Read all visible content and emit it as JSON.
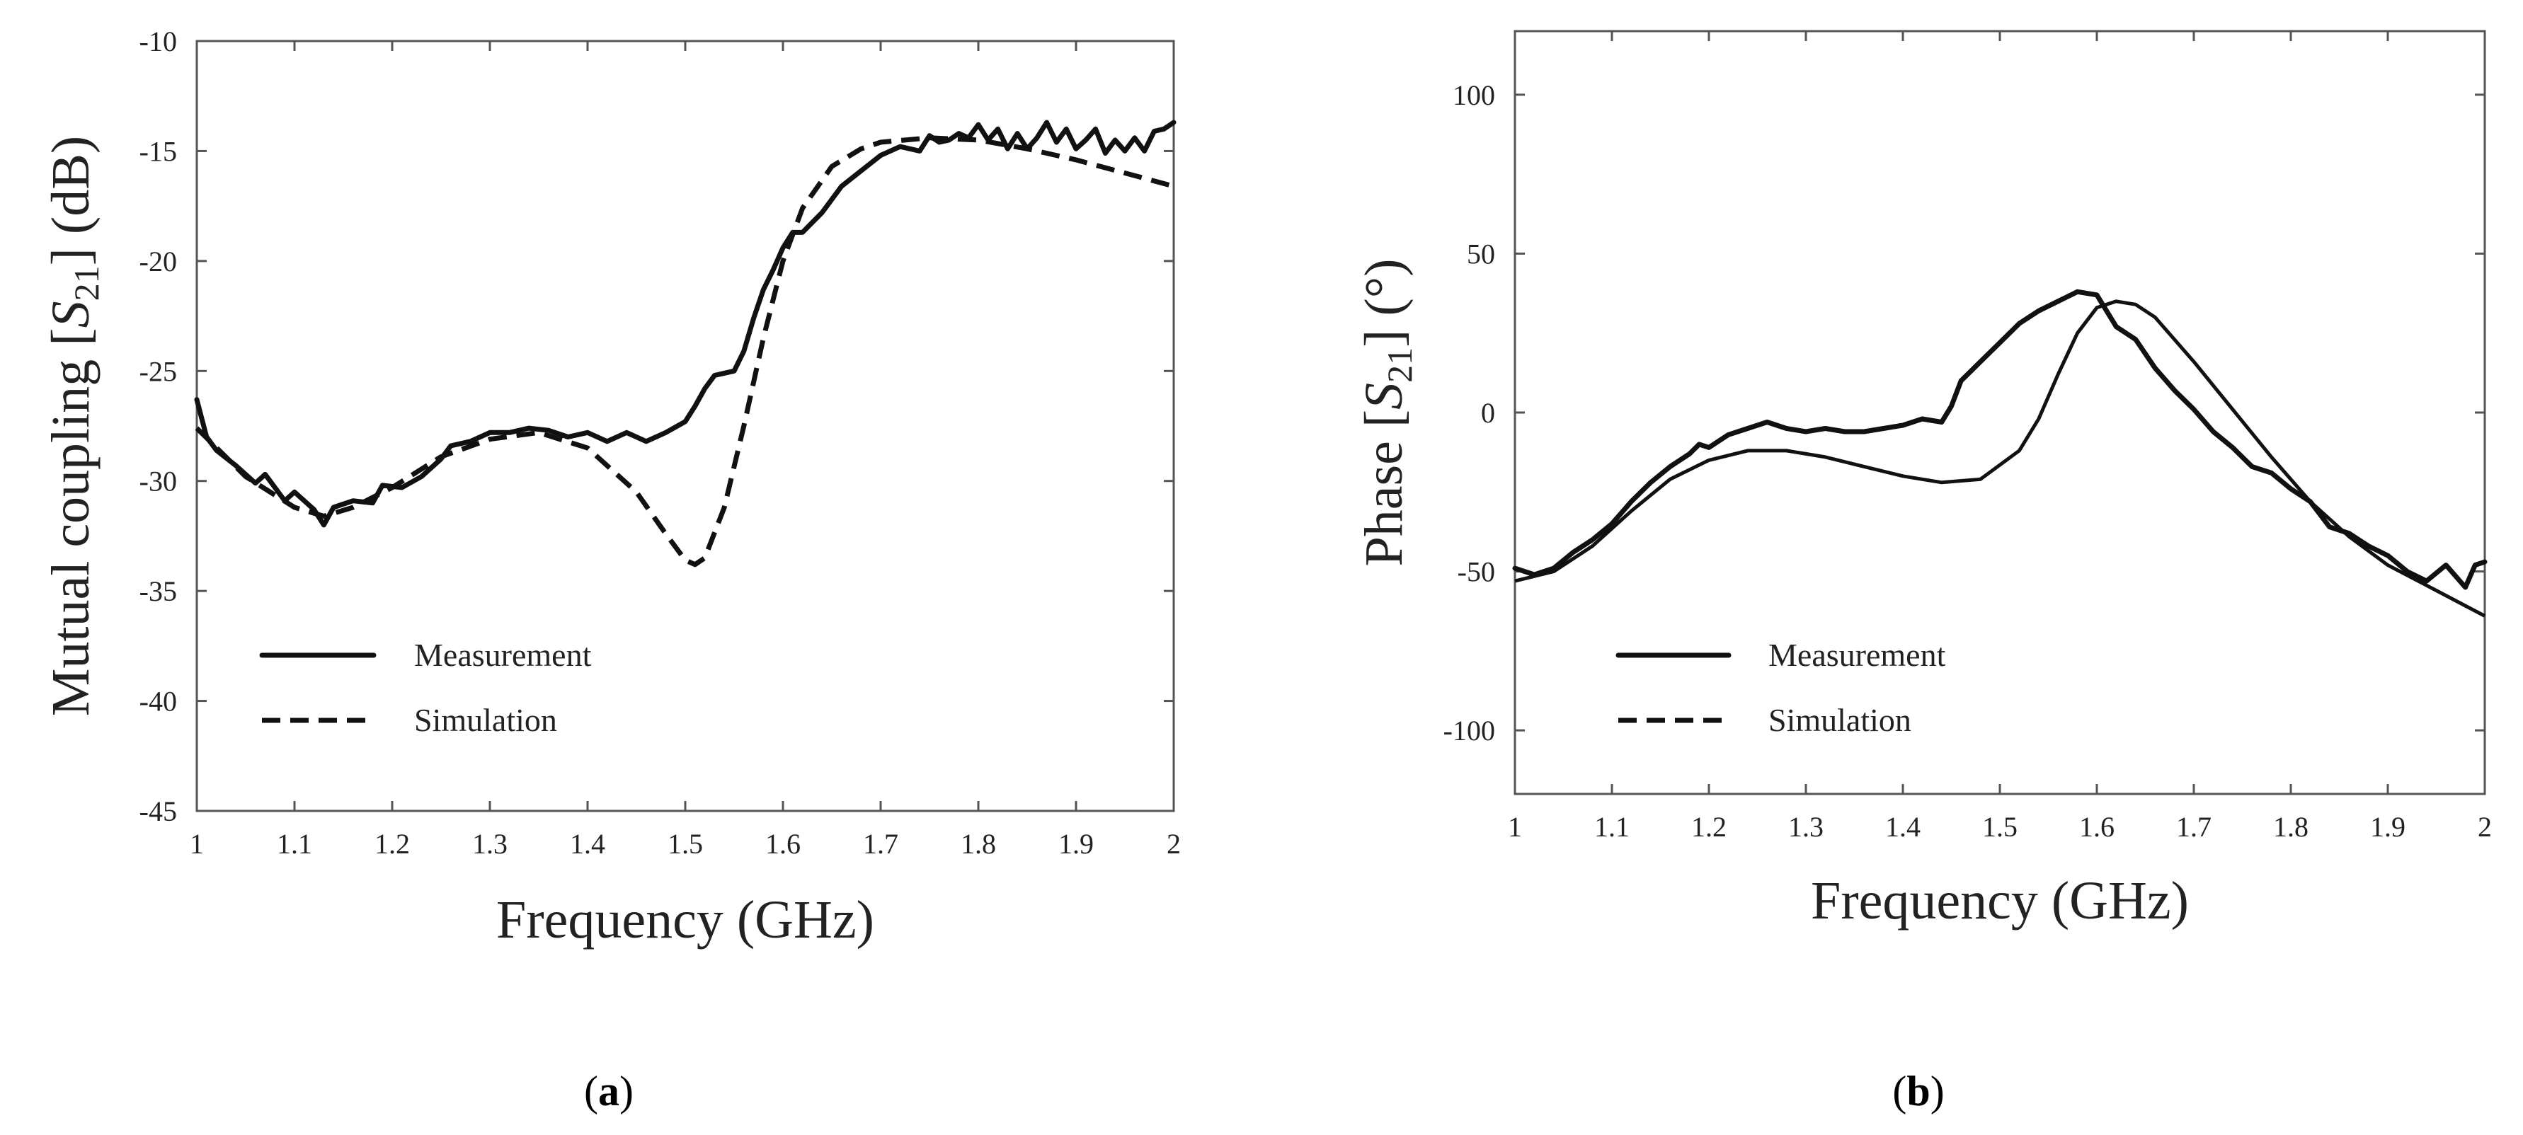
{
  "chart_data": [
    {
      "id": "a",
      "type": "line",
      "panel_prefix": "(",
      "panel_letter": "a",
      "panel_suffix": ")",
      "xlabel": "Frequency (GHz)",
      "ylabel_prefix": "Mutual coupling [",
      "ylabel_symbol": "S",
      "ylabel_subscript": "21",
      "ylabel_suffix": "] (dB)",
      "xlim": [
        1,
        2
      ],
      "ylim": [
        -45,
        -10
      ],
      "xticks": [
        1,
        1.1,
        1.2,
        1.3,
        1.4,
        1.5,
        1.6,
        1.7,
        1.8,
        1.9,
        2
      ],
      "xtick_labels": [
        "1",
        "1.1",
        "1.2",
        "1.3",
        "1.4",
        "1.5",
        "1.6",
        "1.7",
        "1.8",
        "1.9",
        "2"
      ],
      "yticks": [
        -45,
        -40,
        -35,
        -30,
        -25,
        -20,
        -15,
        -10
      ],
      "ytick_labels": [
        "-45",
        "-40",
        "-35",
        "-30",
        "-25",
        "-20",
        "-15",
        "-10"
      ],
      "legend": [
        {
          "label": "Measurement",
          "style": "solid"
        },
        {
          "label": "Simulation",
          "style": "dashed"
        }
      ],
      "series": [
        {
          "name": "Measurement",
          "style": "solid",
          "x": [
            1.0,
            1.01,
            1.02,
            1.04,
            1.06,
            1.07,
            1.09,
            1.1,
            1.12,
            1.13,
            1.14,
            1.16,
            1.18,
            1.19,
            1.21,
            1.23,
            1.25,
            1.26,
            1.28,
            1.3,
            1.32,
            1.34,
            1.36,
            1.38,
            1.4,
            1.42,
            1.44,
            1.46,
            1.48,
            1.5,
            1.51,
            1.52,
            1.53,
            1.55,
            1.56,
            1.57,
            1.58,
            1.59,
            1.6,
            1.61,
            1.62,
            1.64,
            1.66,
            1.68,
            1.7,
            1.72,
            1.74,
            1.75,
            1.76,
            1.77,
            1.78,
            1.79,
            1.8,
            1.81,
            1.82,
            1.83,
            1.84,
            1.85,
            1.86,
            1.87,
            1.88,
            1.89,
            1.9,
            1.91,
            1.92,
            1.93,
            1.94,
            1.95,
            1.96,
            1.97,
            1.98,
            1.99,
            2.0
          ],
          "y": [
            -26.3,
            -28.0,
            -28.6,
            -29.3,
            -30.1,
            -29.7,
            -30.9,
            -30.5,
            -31.3,
            -32.0,
            -31.2,
            -30.9,
            -31.0,
            -30.2,
            -30.3,
            -29.8,
            -29.0,
            -28.4,
            -28.2,
            -27.8,
            -27.8,
            -27.6,
            -27.7,
            -28.0,
            -27.8,
            -28.2,
            -27.8,
            -28.2,
            -27.8,
            -27.3,
            -26.6,
            -25.8,
            -25.2,
            -25.0,
            -24.1,
            -22.6,
            -21.3,
            -20.4,
            -19.4,
            -18.7,
            -18.7,
            -17.8,
            -16.6,
            -15.9,
            -15.2,
            -14.8,
            -15.0,
            -14.3,
            -14.6,
            -14.5,
            -14.2,
            -14.4,
            -13.8,
            -14.5,
            -14.0,
            -14.9,
            -14.2,
            -14.9,
            -14.4,
            -13.7,
            -14.6,
            -14.0,
            -14.9,
            -14.5,
            -14.0,
            -15.1,
            -14.5,
            -15.0,
            -14.4,
            -15.0,
            -14.1,
            -14.0,
            -13.7
          ]
        },
        {
          "name": "Simulation",
          "style": "dashed",
          "x": [
            1.0,
            1.05,
            1.1,
            1.13,
            1.16,
            1.2,
            1.25,
            1.3,
            1.35,
            1.4,
            1.45,
            1.48,
            1.5,
            1.51,
            1.52,
            1.54,
            1.56,
            1.58,
            1.6,
            1.62,
            1.65,
            1.68,
            1.7,
            1.75,
            1.8,
            1.85,
            1.9,
            1.95,
            2.0
          ],
          "y": [
            -27.6,
            -29.8,
            -31.2,
            -31.6,
            -31.2,
            -30.3,
            -28.9,
            -28.1,
            -27.8,
            -28.5,
            -30.5,
            -32.4,
            -33.6,
            -33.8,
            -33.5,
            -31.2,
            -27.5,
            -23.5,
            -20.0,
            -17.6,
            -15.7,
            -14.9,
            -14.6,
            -14.4,
            -14.5,
            -14.9,
            -15.4,
            -16.0,
            -16.6
          ]
        }
      ]
    },
    {
      "id": "b",
      "type": "line",
      "panel_prefix": "(",
      "panel_letter": "b",
      "panel_suffix": ")",
      "xlabel": "Frequency (GHz)",
      "ylabel_prefix": "Phase [",
      "ylabel_symbol": "S",
      "ylabel_subscript": "21",
      "ylabel_suffix": "] (°)",
      "xlim": [
        1,
        2
      ],
      "ylim": [
        -120,
        120
      ],
      "xticks": [
        1,
        1.1,
        1.2,
        1.3,
        1.4,
        1.5,
        1.6,
        1.7,
        1.8,
        1.9,
        2
      ],
      "xtick_labels": [
        "1",
        "1.1",
        "1.2",
        "1.3",
        "1.4",
        "1.5",
        "1.6",
        "1.7",
        "1.8",
        "1.9",
        "2"
      ],
      "yticks": [
        -100,
        -50,
        0,
        50,
        100
      ],
      "ytick_labels": [
        "-100",
        "-50",
        "0",
        "50",
        "100"
      ],
      "legend": [
        {
          "label": "Measurement",
          "style": "solid"
        },
        {
          "label": "Simulation",
          "style": "dashed"
        }
      ],
      "series": [
        {
          "name": "Measurement",
          "style": "solid",
          "x": [
            1.0,
            1.02,
            1.04,
            1.06,
            1.08,
            1.1,
            1.12,
            1.14,
            1.16,
            1.18,
            1.19,
            1.2,
            1.22,
            1.24,
            1.26,
            1.28,
            1.3,
            1.32,
            1.34,
            1.36,
            1.38,
            1.4,
            1.42,
            1.44,
            1.45,
            1.46,
            1.48,
            1.5,
            1.52,
            1.54,
            1.56,
            1.58,
            1.6,
            1.62,
            1.64,
            1.66,
            1.68,
            1.7,
            1.72,
            1.74,
            1.76,
            1.78,
            1.8,
            1.82,
            1.84,
            1.86,
            1.88,
            1.9,
            1.92,
            1.94,
            1.96,
            1.98,
            1.99,
            2.0
          ],
          "y": [
            -49.0,
            -51.0,
            -49.0,
            -44.0,
            -40.0,
            -35.0,
            -28.0,
            -22.0,
            -17.0,
            -13.0,
            -10.0,
            -11.0,
            -7.0,
            -5.0,
            -3.0,
            -5.0,
            -6.0,
            -5.0,
            -6.0,
            -6.0,
            -5.0,
            -4.0,
            -2.0,
            -3.0,
            2.0,
            10.0,
            16.0,
            22.0,
            28.0,
            32.0,
            35.0,
            38.0,
            37.0,
            27.0,
            23.0,
            14.0,
            7.0,
            1.0,
            -6.0,
            -11.0,
            -17.0,
            -19.0,
            -24.0,
            -28.0,
            -36.0,
            -38.0,
            -42.0,
            -45.0,
            -50.0,
            -53.0,
            -48.0,
            -55.0,
            -48.0,
            -47.0
          ]
        },
        {
          "name": "Simulation",
          "style": "dashed",
          "x": [
            1.0,
            1.04,
            1.08,
            1.12,
            1.16,
            1.2,
            1.24,
            1.28,
            1.32,
            1.36,
            1.4,
            1.44,
            1.48,
            1.52,
            1.54,
            1.56,
            1.58,
            1.6,
            1.62,
            1.64,
            1.66,
            1.7,
            1.74,
            1.78,
            1.82,
            1.86,
            1.9,
            1.95,
            2.0
          ],
          "y": [
            -53.0,
            -50.0,
            -42.0,
            -31.0,
            -21.0,
            -15.0,
            -12.0,
            -12.0,
            -14.0,
            -17.0,
            -20.0,
            -22.0,
            -21.0,
            -12.0,
            -2.0,
            12.0,
            25.0,
            33.0,
            35.0,
            34.0,
            30.0,
            16.0,
            1.0,
            -14.0,
            -28.0,
            -39.0,
            -48.0,
            -56.0,
            -64.0
          ]
        }
      ]
    }
  ]
}
